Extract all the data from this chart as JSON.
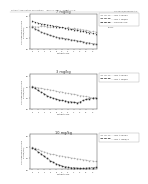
{
  "header_left": "Patient Application Publication",
  "header_mid": "June 17, 2014   Sheet 7 of 8",
  "header_right": "US 2014/0000000 A1",
  "background": "#ffffff",
  "plots": [
    {
      "title": "7 mg/kg",
      "xlabel": "Patients No.",
      "ylabel": "% Change from Baseline in\nDAS28 (CRP)",
      "series": [
        {
          "label": "- - - MTX + Placebo",
          "color": "#aaaaaa",
          "marker": "o",
          "linestyle": "--",
          "x": [
            0,
            1,
            2,
            3,
            4,
            5,
            6,
            7,
            8,
            9,
            10,
            11,
            12,
            13,
            14,
            15,
            16,
            17,
            18,
            19,
            20,
            21
          ],
          "y": [
            1.55,
            1.52,
            1.5,
            1.53,
            1.55,
            1.5,
            1.48,
            1.52,
            1.55,
            1.5,
            1.48,
            1.45,
            1.48,
            1.42,
            1.45,
            1.42,
            1.4,
            1.38,
            1.35,
            1.32,
            1.3,
            1.28
          ]
        },
        {
          "label": "- - - MTX + 3mg/kg",
          "color": "#555555",
          "marker": "s",
          "linestyle": "--",
          "x": [
            0,
            1,
            2,
            3,
            4,
            5,
            6,
            7,
            8,
            9,
            10,
            11,
            12,
            13,
            14,
            15,
            16,
            17,
            18,
            19,
            20,
            21
          ],
          "y": [
            1.5,
            1.42,
            1.35,
            1.28,
            1.22,
            1.18,
            1.12,
            1.08,
            1.05,
            1.02,
            1.0,
            0.98,
            0.95,
            0.92,
            0.9,
            0.88,
            0.85,
            0.83,
            0.8,
            0.78,
            0.75,
            0.73
          ]
        },
        {
          "label": "- - - Baseline value",
          "color": "#222222",
          "marker": "^",
          "linestyle": "--",
          "x": [
            0,
            1,
            2,
            3,
            4,
            5,
            6,
            7,
            8,
            9,
            10,
            11,
            12,
            13,
            14,
            15,
            16,
            17,
            18,
            19,
            20,
            21
          ],
          "y": [
            1.78,
            1.72,
            1.68,
            1.65,
            1.62,
            1.6,
            1.58,
            1.55,
            1.52,
            1.5,
            1.48,
            1.45,
            1.42,
            1.4,
            1.38,
            1.35,
            1.33,
            1.3,
            1.28,
            1.25,
            1.22,
            1.2
          ]
        }
      ],
      "ylim": [
        0.5,
        2.1
      ],
      "yticks": [
        0.5,
        1.0,
        1.5,
        2.0
      ],
      "yticklabels": [
        "0.5",
        "1.0",
        "1.5",
        "2.0"
      ]
    },
    {
      "title": "3 mg/kg",
      "xlabel": "Patients No.",
      "ylabel": "% Change from Baseline in\nDAS28 (CRP)",
      "series": [
        {
          "label": "- - - MTX + Placebo",
          "color": "#aaaaaa",
          "marker": "o",
          "linestyle": "--",
          "x": [
            0,
            1,
            2,
            3,
            4,
            5,
            6,
            7,
            8,
            9,
            10,
            11,
            12,
            13,
            14,
            15,
            16,
            17,
            18,
            19,
            20,
            21
          ],
          "y": [
            1.55,
            1.5,
            1.48,
            1.45,
            1.42,
            1.4,
            1.38,
            1.35,
            1.32,
            1.3,
            1.28,
            1.25,
            1.22,
            1.2,
            1.18,
            1.15,
            1.12,
            1.1,
            1.08,
            1.05,
            1.02,
            1.0
          ]
        },
        {
          "label": "- - - MTX + 3mg/kg",
          "color": "#333333",
          "marker": "s",
          "linestyle": "--",
          "x": [
            0,
            1,
            2,
            3,
            4,
            5,
            6,
            7,
            8,
            9,
            10,
            11,
            12,
            13,
            14,
            15,
            16,
            17,
            18,
            19,
            20,
            21
          ],
          "y": [
            1.52,
            1.45,
            1.35,
            1.28,
            1.2,
            1.12,
            1.05,
            1.0,
            0.96,
            0.92,
            0.9,
            0.88,
            0.85,
            0.83,
            0.82,
            0.8,
            0.85,
            0.9,
            0.95,
            0.98,
            1.0,
            1.02
          ]
        }
      ],
      "ylim": [
        0.5,
        2.1
      ],
      "yticks": [
        0.5,
        1.0,
        1.5,
        2.0
      ],
      "yticklabels": [
        "0.5",
        "1.0",
        "1.5",
        "2.0"
      ]
    },
    {
      "title": "10 mg/kg",
      "xlabel": "Patients No.",
      "ylabel": "% Change from Baseline in\nDAS28 (CRP)",
      "series": [
        {
          "label": "- - - MTX + Placebo",
          "color": "#aaaaaa",
          "marker": "o",
          "linestyle": "--",
          "x": [
            0,
            1,
            2,
            3,
            4,
            5,
            6,
            7,
            8,
            9,
            10,
            11,
            12,
            13,
            14,
            15,
            16,
            17,
            18,
            19,
            20,
            21
          ],
          "y": [
            1.5,
            1.45,
            1.4,
            1.35,
            1.3,
            1.25,
            1.2,
            1.18,
            1.15,
            1.12,
            1.1,
            1.08,
            1.05,
            1.02,
            1.0,
            0.98,
            0.96,
            0.94,
            0.92,
            0.9,
            0.88,
            0.86
          ]
        },
        {
          "label": "- - - MTX + 10mg/kg",
          "color": "#333333",
          "marker": "s",
          "linestyle": "--",
          "x": [
            0,
            1,
            2,
            3,
            4,
            5,
            6,
            7,
            8,
            9,
            10,
            11,
            12,
            13,
            14,
            15,
            16,
            17,
            18,
            19,
            20,
            21
          ],
          "y": [
            1.48,
            1.4,
            1.3,
            1.2,
            1.1,
            1.0,
            0.9,
            0.82,
            0.75,
            0.7,
            0.65,
            0.62,
            0.6,
            0.58,
            0.57,
            0.56,
            0.55,
            0.55,
            0.56,
            0.57,
            0.58,
            0.6
          ]
        }
      ],
      "ylim": [
        0.5,
        2.1
      ],
      "yticks": [
        0.5,
        1.0,
        1.5,
        2.0
      ],
      "yticklabels": [
        "0.5",
        "1.0",
        "1.5",
        "2.0"
      ]
    }
  ]
}
